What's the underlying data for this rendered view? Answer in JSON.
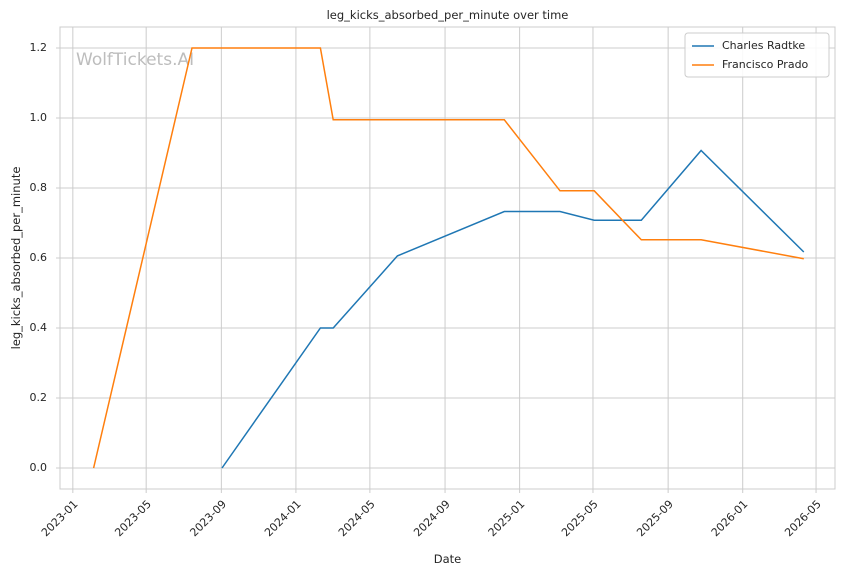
{
  "chart_data": {
    "type": "line",
    "title": "leg_kicks_absorbed_per_minute over time",
    "xlabel": "Date",
    "ylabel": "leg_kicks_absorbed_per_minute",
    "watermark": "WolfTickets.AI",
    "xlim": [
      "2022-12-11",
      "2026-06-01"
    ],
    "ylim": [
      -0.06,
      1.26
    ],
    "x_ticks": [
      "2023-01",
      "2023-05",
      "2023-09",
      "2024-01",
      "2024-05",
      "2024-09",
      "2025-01",
      "2025-05",
      "2025-09",
      "2026-01",
      "2026-05"
    ],
    "y_ticks": [
      "0.0",
      "0.2",
      "0.4",
      "0.6",
      "0.8",
      "1.0",
      "1.2"
    ],
    "grid": true,
    "legend_position": "top-right",
    "series": [
      {
        "name": "Charles Radtke",
        "color": "#1f77b4",
        "points": [
          {
            "x": "2023-09-02",
            "y": 0.0
          },
          {
            "x": "2024-02-10",
            "y": 0.4
          },
          {
            "x": "2024-03-02",
            "y": 0.4
          },
          {
            "x": "2024-06-15",
            "y": 0.606
          },
          {
            "x": "2024-12-07",
            "y": 0.733
          },
          {
            "x": "2025-03-08",
            "y": 0.733
          },
          {
            "x": "2025-05-03",
            "y": 0.708
          },
          {
            "x": "2025-07-19",
            "y": 0.708
          },
          {
            "x": "2025-10-25",
            "y": 0.907
          },
          {
            "x": "2026-04-11",
            "y": 0.617
          }
        ]
      },
      {
        "name": "Francisco Prado",
        "color": "#ff7f0e",
        "points": [
          {
            "x": "2023-02-04",
            "y": 0.0
          },
          {
            "x": "2023-07-15",
            "y": 1.2
          },
          {
            "x": "2024-02-10",
            "y": 1.2
          },
          {
            "x": "2024-03-02",
            "y": 0.995
          },
          {
            "x": "2024-12-07",
            "y": 0.995
          },
          {
            "x": "2025-03-08",
            "y": 0.792
          },
          {
            "x": "2025-05-03",
            "y": 0.792
          },
          {
            "x": "2025-07-19",
            "y": 0.652
          },
          {
            "x": "2025-10-25",
            "y": 0.652
          },
          {
            "x": "2026-04-11",
            "y": 0.598
          }
        ]
      }
    ]
  }
}
